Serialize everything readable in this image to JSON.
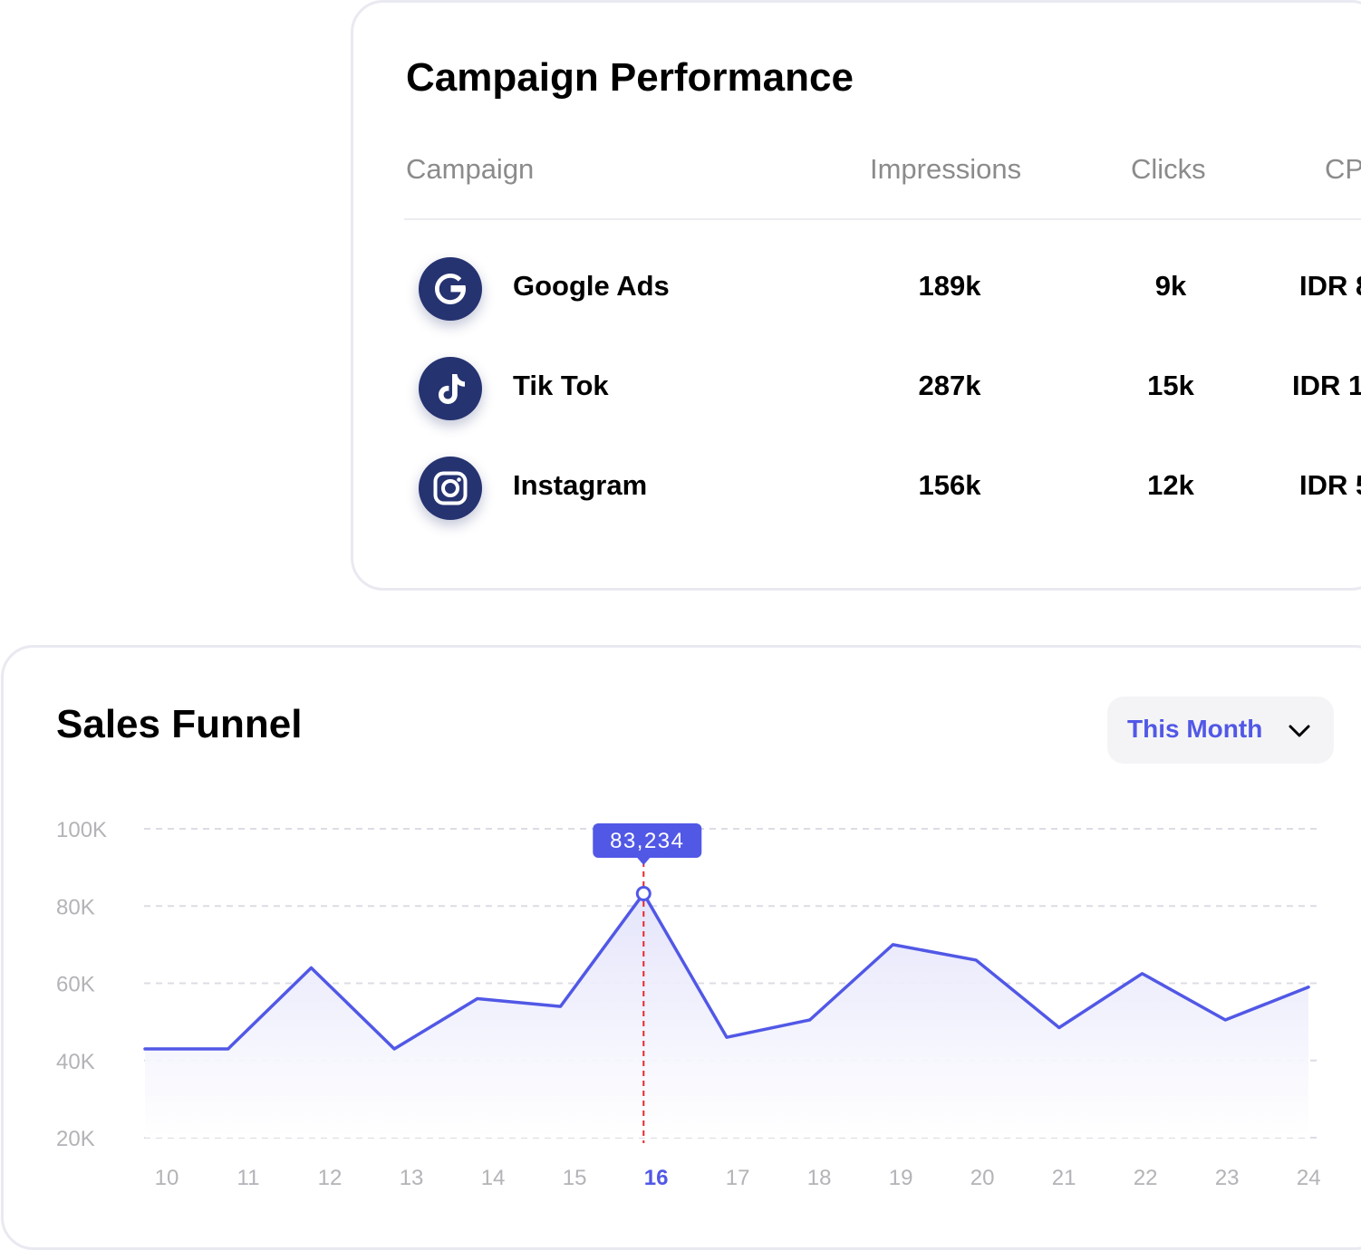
{
  "campaign": {
    "title": "Campaign Performance",
    "headers": {
      "campaign": "Campaign",
      "impressions": "Impressions",
      "clicks": "Clicks",
      "cpc": "CP"
    },
    "rows": [
      {
        "icon": "google-icon",
        "name": "Google Ads",
        "impressions": "189k",
        "clicks": "9k",
        "cpc": "IDR 8"
      },
      {
        "icon": "tiktok-icon",
        "name": "Tik Tok",
        "impressions": "287k",
        "clicks": "15k",
        "cpc": "IDR 1"
      },
      {
        "icon": "instagram-icon",
        "name": "Instagram",
        "impressions": "156k",
        "clicks": "12k",
        "cpc": "IDR 5"
      }
    ]
  },
  "sales": {
    "title": "Sales Funnel",
    "period_label": "This Month",
    "chevron_icon": "chevron-down-icon"
  },
  "chart_data": {
    "type": "area",
    "x": [
      10,
      11,
      12,
      13,
      14,
      15,
      16,
      17,
      18,
      19,
      20,
      21,
      22,
      23,
      24
    ],
    "x_tick_labels": [
      "10",
      "11",
      "12",
      "13",
      "14",
      "15",
      "16",
      "17",
      "18",
      "19",
      "20",
      "21",
      "22",
      "23",
      "24"
    ],
    "y_tick_labels": [
      "100K",
      "80K",
      "60K",
      "40K",
      "20K"
    ],
    "y_ticks": [
      100000,
      80000,
      60000,
      40000,
      20000
    ],
    "values": [
      43000,
      43000,
      64000,
      43000,
      56000,
      54000,
      83234,
      46000,
      50500,
      70000,
      66000,
      48500,
      62500,
      50500,
      59000
    ],
    "ylim": [
      20000,
      100000
    ],
    "highlight_index": 6,
    "highlight_label": "83,234",
    "grid": true,
    "colors": {
      "line": "#5158e6",
      "fill": "#e3e3fb",
      "marker_line": "#e8272d",
      "tooltip_bg": "#5158e6",
      "grid": "#dcdce4",
      "tick": "#b3b3b8",
      "tick_active": "#5158e6"
    }
  }
}
